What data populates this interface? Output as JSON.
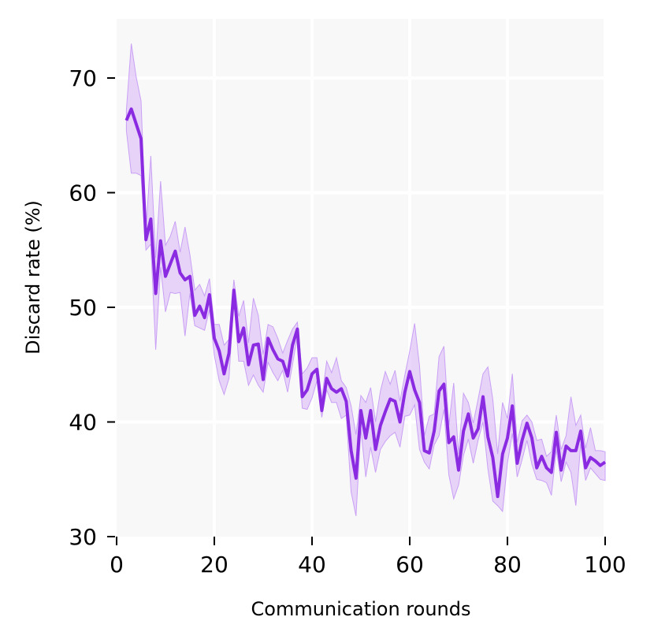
{
  "chart_data": {
    "type": "line",
    "title": "",
    "xlabel": "Communication rounds",
    "ylabel": "Discard rate (%)",
    "xlim": [
      0,
      100
    ],
    "ylim": [
      30,
      75
    ],
    "xticks": [
      0,
      20,
      40,
      60,
      80,
      100
    ],
    "yticks": [
      30,
      40,
      50,
      60,
      70
    ],
    "grid": true,
    "legend": "none",
    "colors": {
      "line": "#8a2be2",
      "band": "#d8b4f8",
      "plot_background": "#f8f8f8",
      "grid": "#ffffff"
    },
    "series": [
      {
        "x": [
          2,
          3,
          4,
          5,
          6,
          7,
          8,
          9,
          10,
          11,
          12,
          13,
          14,
          15,
          16,
          17,
          18,
          19,
          20,
          21,
          22,
          23,
          24,
          25,
          26,
          27,
          28,
          29,
          30,
          31,
          32,
          33,
          34,
          35,
          36,
          37,
          38,
          39,
          40,
          41,
          42,
          43,
          44,
          45,
          46,
          47,
          48,
          49,
          50,
          51,
          52,
          53,
          54,
          55,
          56,
          57,
          58,
          59,
          60,
          61,
          62,
          63,
          64,
          65,
          66,
          67,
          68,
          69,
          70,
          71,
          72,
          73,
          74,
          75,
          76,
          77,
          78,
          79,
          80,
          81,
          82,
          83,
          84,
          85,
          86,
          87,
          88,
          89,
          90,
          91,
          92,
          93,
          94,
          95,
          96,
          97,
          98,
          99,
          100
        ],
        "values": [
          66.3,
          67.3,
          66.0,
          64.7,
          55.9,
          57.7,
          51.2,
          55.8,
          52.7,
          53.8,
          54.9,
          53.0,
          52.4,
          52.7,
          49.3,
          50.1,
          49.1,
          51.1,
          47.3,
          46.2,
          44.2,
          46.0,
          51.5,
          47.0,
          48.2,
          45.0,
          46.7,
          46.8,
          43.7,
          47.3,
          46.3,
          45.5,
          45.3,
          44.0,
          46.7,
          48.1,
          42.2,
          42.8,
          44.2,
          44.6,
          41.0,
          43.8,
          42.9,
          42.6,
          42.9,
          41.8,
          37.5,
          35.1,
          41.0,
          38.6,
          41.0,
          37.6,
          39.7,
          40.9,
          42.0,
          41.8,
          40.0,
          42.6,
          44.4,
          42.8,
          41.7,
          37.5,
          37.3,
          39.2,
          42.7,
          43.3,
          38.2,
          38.7,
          35.8,
          39.2,
          40.7,
          38.6,
          39.4,
          42.2,
          38.7,
          36.9,
          33.5,
          37.2,
          38.6,
          41.4,
          36.4,
          38.4,
          39.9,
          38.6,
          36.0,
          37.0,
          36.0,
          35.6,
          39.1,
          35.8,
          37.9,
          37.5,
          37.5,
          39.2,
          36.0,
          36.9,
          36.6,
          36.2,
          36.5
        ],
        "lower": [
          65.4,
          61.7,
          61.7,
          61.5,
          55.0,
          55.5,
          46.3,
          53.5,
          49.6,
          51.3,
          51.2,
          51.3,
          47.5,
          51.2,
          48.4,
          48.2,
          48.0,
          49.8,
          45.8,
          43.6,
          42.4,
          43.8,
          50.6,
          45.3,
          45.3,
          43.2,
          44.1,
          43.2,
          42.6,
          45.2,
          44.3,
          43.6,
          44.5,
          42.6,
          45.0,
          47.5,
          41.2,
          41.1,
          42.1,
          43.6,
          40.4,
          42.8,
          41.7,
          41.7,
          40.3,
          40.6,
          33.9,
          31.8,
          39.4,
          35.2,
          37.8,
          35.6,
          37.6,
          38.3,
          38.8,
          39.1,
          37.8,
          40.5,
          40.6,
          41.5,
          37.6,
          36.5,
          35.9,
          38.0,
          38.8,
          41.1,
          35.4,
          33.3,
          34.5,
          37.1,
          38.5,
          36.4,
          38.4,
          40.0,
          35.9,
          33.1,
          32.7,
          32.2,
          36.4,
          39.0,
          35.2,
          36.7,
          38.4,
          36.3,
          35.0,
          34.9,
          34.7,
          33.6,
          37.6,
          34.8,
          36.5,
          35.6,
          32.7,
          38.1,
          34.9,
          36.0,
          35.5,
          35.0,
          34.9
        ],
        "upper": [
          67.2,
          73.0,
          70.1,
          68.0,
          56.7,
          63.2,
          54.3,
          61.0,
          55.4,
          56.2,
          57.5,
          54.8,
          57.0,
          54.6,
          51.5,
          52.0,
          51.0,
          52.5,
          48.5,
          48.5,
          46.7,
          47.2,
          52.4,
          49.2,
          50.6,
          46.9,
          50.8,
          49.3,
          45.9,
          48.5,
          48.3,
          47.3,
          46.0,
          47.1,
          48.1,
          48.7,
          44.2,
          44.7,
          45.6,
          45.6,
          42.0,
          45.3,
          44.3,
          45.6,
          43.6,
          43.0,
          41.4,
          38.9,
          42.3,
          41.7,
          43.0,
          40.0,
          42.7,
          44.4,
          43.3,
          44.5,
          41.8,
          44.1,
          46.2,
          48.6,
          44.9,
          38.8,
          40.5,
          40.7,
          45.7,
          46.6,
          39.7,
          43.4,
          37.2,
          42.5,
          41.7,
          39.9,
          42.0,
          44.2,
          44.8,
          42.0,
          37.2,
          41.7,
          40.3,
          44.2,
          38.2,
          40.1,
          40.6,
          40.0,
          38.4,
          38.5,
          37.0,
          37.4,
          40.6,
          37.6,
          38.8,
          42.2,
          39.7,
          40.6,
          37.7,
          39.5,
          37.5,
          37.5,
          37.4
        ]
      }
    ]
  }
}
